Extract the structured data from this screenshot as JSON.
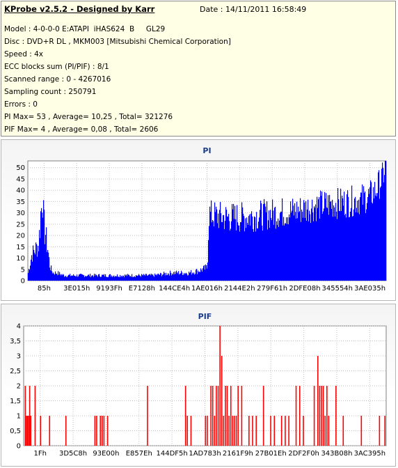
{
  "header": {
    "app_title": "KProbe v2.5.2 - Designed by Karr",
    "date": "Date : 14/11/2011 16:58:49"
  },
  "info_lines": [
    "Model : 4-0-0-0 E:ATAPI  iHAS624  B     GL29",
    "Disc : DVD+R DL , MKM003 [Mitsubishi Chemical Corporation]",
    "Speed : 4x",
    "ECC blocks sum (PI/PIF) : 8/1",
    "Scanned range : 0 - 4267016",
    "Sampling count : 250791",
    "Errors : 0",
    "PI Max= 53 , Average= 10,25 , Total= 321276",
    "PIF Max= 4 , Average= 0,08 , Total= 2606"
  ],
  "chart_data": [
    {
      "type": "area",
      "title": "PI",
      "color": "#0000ff",
      "ylim": [
        0,
        53
      ],
      "yticks": [
        0,
        5,
        10,
        15,
        20,
        25,
        30,
        35,
        40,
        45,
        50
      ],
      "xtick_labels": [
        "85h",
        "3E015h",
        "9193Fh",
        "E7128h",
        "144CE4h",
        "1AE016h",
        "2144E2h",
        "279F61h",
        "2DFE08h",
        "345554h",
        "3AE035h"
      ],
      "grid": true,
      "series": [
        {
          "x_fraction": [
            0.0,
            0.01,
            0.02,
            0.03,
            0.035,
            0.04,
            0.045,
            0.05,
            0.055,
            0.06,
            0.065,
            0.07,
            0.08,
            0.1,
            0.15,
            0.2,
            0.25,
            0.3,
            0.35,
            0.4,
            0.45,
            0.48,
            0.5,
            0.505,
            0.51,
            0.55,
            0.6,
            0.65,
            0.7,
            0.75,
            0.8,
            0.85,
            0.9,
            0.95,
            0.97,
            0.99,
            1.0
          ],
          "values": [
            3,
            10,
            12,
            14,
            30,
            36,
            24,
            16,
            12,
            6,
            4,
            3,
            3,
            2,
            2,
            2,
            2,
            2,
            2,
            3,
            3,
            4,
            5,
            30,
            29,
            28,
            28,
            29,
            30,
            31,
            33,
            34,
            35,
            37,
            40,
            46,
            53
          ]
        }
      ]
    },
    {
      "type": "bar",
      "title": "PIF",
      "color": "#ff0000",
      "ylim": [
        0,
        4
      ],
      "yticks": [
        0,
        0.5,
        1,
        1.5,
        2,
        2.5,
        3,
        3.5,
        4
      ],
      "ytick_labels": [
        "0",
        "0,5",
        "1",
        "1,5",
        "2",
        "2,5",
        "3",
        "3,5",
        "4"
      ],
      "xtick_labels": [
        "1Fh",
        "3D5C8h",
        "93E00h",
        "E857Eh",
        "144DF5h",
        "1AD783h",
        "2161F9h",
        "27B01Eh",
        "2DF2F0h",
        "343B08h",
        "3AC395h"
      ],
      "grid": true,
      "series": [
        {
          "x_fraction": [
            0.003,
            0.006,
            0.009,
            0.012,
            0.015,
            0.018,
            0.03,
            0.045,
            0.07,
            0.115,
            0.195,
            0.2,
            0.21,
            0.215,
            0.22,
            0.23,
            0.34,
            0.445,
            0.45,
            0.46,
            0.5,
            0.505,
            0.515,
            0.52,
            0.525,
            0.53,
            0.535,
            0.54,
            0.545,
            0.55,
            0.555,
            0.56,
            0.565,
            0.57,
            0.575,
            0.58,
            0.585,
            0.59,
            0.6,
            0.62,
            0.63,
            0.64,
            0.66,
            0.68,
            0.69,
            0.71,
            0.72,
            0.73,
            0.75,
            0.76,
            0.77,
            0.8,
            0.81,
            0.815,
            0.82,
            0.825,
            0.83,
            0.835,
            0.84,
            0.86,
            0.88,
            0.93,
            0.98,
            0.995
          ],
          "values": [
            2,
            1,
            1,
            1,
            2,
            1,
            2,
            1,
            1,
            1,
            1,
            1,
            1,
            1,
            1,
            1,
            2,
            2,
            1,
            1,
            1,
            1,
            2,
            2,
            1,
            2,
            2,
            4,
            3,
            1,
            2,
            2,
            1,
            2,
            1,
            1,
            1,
            2,
            2,
            1,
            1,
            1,
            2,
            1,
            1,
            1,
            1,
            1,
            2,
            2,
            1,
            2,
            3,
            2,
            2,
            2,
            1,
            2,
            1,
            2,
            1,
            1,
            1,
            1
          ]
        }
      ]
    }
  ]
}
